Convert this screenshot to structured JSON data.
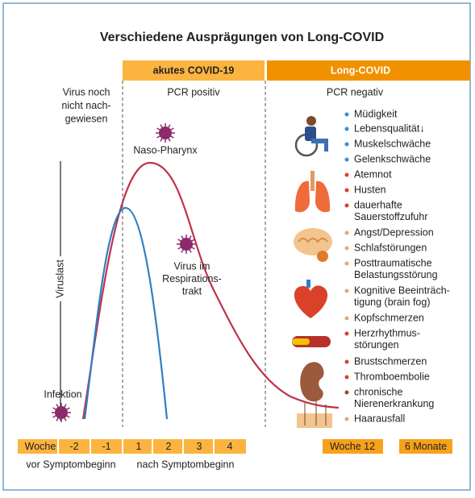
{
  "title": "Verschiedene Ausprägungen von Long-COVID",
  "phases": [
    {
      "label": "akutes COVID-19"
    },
    {
      "label": "Long-COVID"
    }
  ],
  "columns": [
    {
      "lines": [
        "Virus noch",
        "nicht nach-",
        "gewiesen"
      ]
    },
    {
      "lines": [
        "PCR positiv"
      ]
    },
    {
      "lines": [
        "PCR negativ"
      ]
    }
  ],
  "y_axis_label": "Viruslast",
  "annotations": [
    {
      "lines": [
        "Naso-Pharynx"
      ]
    },
    {
      "lines": [
        "Virus im",
        "Respirations-",
        "trakt"
      ]
    },
    {
      "lines": [
        "Infektion"
      ]
    }
  ],
  "symptoms": [
    {
      "lines": [
        "Müdigkeit"
      ]
    },
    {
      "lines": [
        "Lebensqualität↓"
      ]
    },
    {
      "lines": [
        "Muskelschwäche"
      ]
    },
    {
      "lines": [
        "Gelenkschwäche"
      ]
    },
    {
      "lines": [
        "Atemnot"
      ]
    },
    {
      "lines": [
        "Husten"
      ]
    },
    {
      "lines": [
        "dauerhafte",
        "Sauerstoffzufuhr"
      ]
    },
    {
      "lines": [
        "Angst/Depression"
      ]
    },
    {
      "lines": [
        "Schlafstörungen"
      ]
    },
    {
      "lines": [
        "Posttraumatische",
        "Belastungsstörung"
      ]
    },
    {
      "lines": [
        "Kognitive Beeinträch-",
        "tigung (brain fog)"
      ]
    },
    {
      "lines": [
        "Kopfschmerzen"
      ]
    },
    {
      "lines": [
        "Herzrhythmus-",
        "störungen"
      ]
    },
    {
      "lines": [
        "Brustschmerzen"
      ]
    },
    {
      "lines": [
        "Thromboembolie"
      ]
    },
    {
      "lines": [
        "chronische",
        "Nierenerkrankung"
      ]
    },
    {
      "lines": [
        "Haarausfall"
      ]
    }
  ],
  "timeline": {
    "cells": [
      "Woche",
      "-2",
      "-1",
      "1",
      "2",
      "3",
      "4"
    ],
    "late": [
      "Woche 12",
      "6 Monate"
    ],
    "captions": [
      "vor Symptombeginn",
      "nach Symptombeginn"
    ]
  }
}
